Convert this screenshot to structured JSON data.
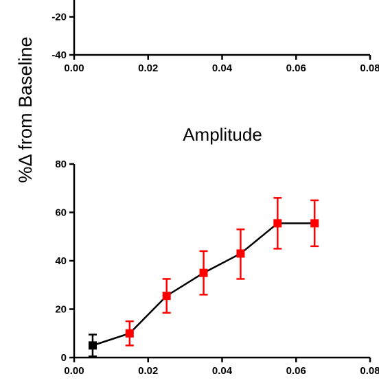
{
  "y_axis_label": "%Δ from Baseline",
  "chart_data": [
    {
      "type": "line",
      "title": "",
      "xlabel": "",
      "ylabel": "%Δ from Baseline",
      "xlim": [
        0,
        0.08
      ],
      "ylim": [
        -40,
        0
      ],
      "x_ticks": [
        "0.00",
        "0.02",
        "0.04",
        "0.06",
        "0.08"
      ],
      "y_ticks": [
        "-40",
        "-20"
      ],
      "x_tick_values": [
        0,
        0.02,
        0.04,
        0.06,
        0.08
      ],
      "y_tick_values": [
        -40,
        -20
      ],
      "series": [],
      "grid": false
    },
    {
      "type": "line",
      "title": "Amplitude",
      "xlabel": "",
      "ylabel": "%Δ from Baseline",
      "xlim": [
        0,
        0.08
      ],
      "ylim": [
        0,
        80
      ],
      "x_ticks": [
        "0.00",
        "0.02",
        "0.04",
        "0.06",
        "0.08"
      ],
      "y_ticks": [
        "0",
        "20",
        "40",
        "60",
        "80"
      ],
      "x_tick_values": [
        0,
        0.02,
        0.04,
        0.06,
        0.08
      ],
      "y_tick_values": [
        0,
        20,
        40,
        60,
        80
      ],
      "series": [
        {
          "x": [
            0.005,
            0.015,
            0.025,
            0.035,
            0.045,
            0.055,
            0.065
          ],
          "y": [
            5,
            10,
            25.5,
            35,
            43,
            55.5,
            55.5
          ],
          "err_low": [
            4.5,
            5,
            7,
            9,
            10.5,
            10.5,
            9.5
          ],
          "err_high": [
            4.5,
            5,
            7,
            9,
            10,
            10.5,
            9.5
          ],
          "colors": [
            "#000000",
            "#ff0000",
            "#ff0000",
            "#ff0000",
            "#ff0000",
            "#ff0000",
            "#ff0000"
          ]
        }
      ],
      "grid": false
    }
  ]
}
